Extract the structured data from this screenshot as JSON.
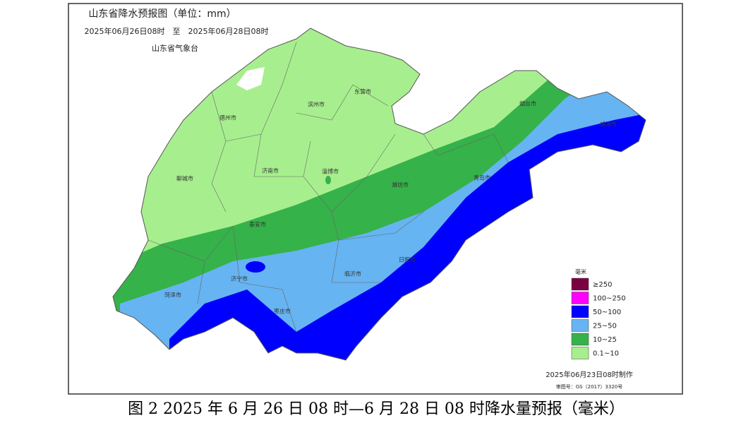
{
  "map": {
    "title": "山东省降水预报图（单位：mm）",
    "period": "2025年06月26日08时　至　2025年06月28日08时",
    "issuer": "山东省气象台",
    "cities": [
      {
        "name": "滨州市"
      },
      {
        "name": "东营市"
      },
      {
        "name": "德州市"
      },
      {
        "name": "烟台市"
      },
      {
        "name": "威海市"
      },
      {
        "name": "聊城市"
      },
      {
        "name": "济南市"
      },
      {
        "name": "淄博市"
      },
      {
        "name": "潍坊市"
      },
      {
        "name": "青岛市"
      },
      {
        "name": "泰安市"
      },
      {
        "name": "日照市"
      },
      {
        "name": "菏泽市"
      },
      {
        "name": "济宁市"
      },
      {
        "name": "临沂市"
      },
      {
        "name": "枣庄市"
      }
    ],
    "legend": {
      "title": "毫米",
      "items": [
        {
          "label": "≥250",
          "color": "#7b0040"
        },
        {
          "label": "100~250",
          "color": "#ff00ff"
        },
        {
          "label": "50~100",
          "color": "#0000ff"
        },
        {
          "label": "25~50",
          "color": "#66b4f2"
        },
        {
          "label": "10~25",
          "color": "#36b24a"
        },
        {
          "label": "0.1~10",
          "color": "#a7ef8e"
        }
      ]
    },
    "made": "2025年06月23日08时制作",
    "approval": "审图号：GS（2017）3320号"
  },
  "caption": "图 2 2025 年 6 月 26 日 08 时—6 月 28 日 08 时降水量预报（毫米）"
}
